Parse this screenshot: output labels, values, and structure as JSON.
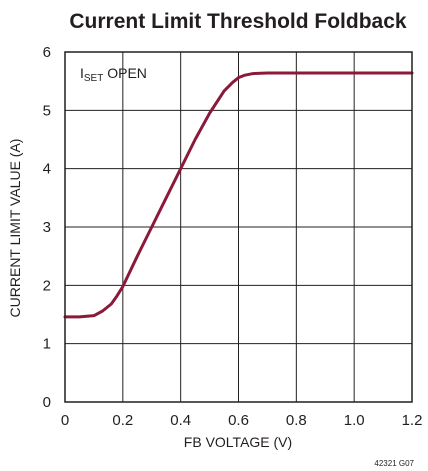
{
  "chart_data": {
    "type": "line",
    "title": "Current Limit Threshold Foldback",
    "xlabel": "FB VOLTAGE (V)",
    "ylabel": "CURRENT LIMIT VALUE (A)",
    "xlim": [
      0,
      1.2
    ],
    "ylim": [
      0,
      6
    ],
    "x_ticks": [
      "0",
      "0.2",
      "0.4",
      "0.6",
      "0.8",
      "1.0",
      "1.2"
    ],
    "y_ticks": [
      "0",
      "1",
      "2",
      "3",
      "4",
      "5",
      "6"
    ],
    "grid": true,
    "annotation": {
      "prefix": "I",
      "subscript": "SET",
      "suffix": " OPEN"
    },
    "figure_code": "42321 G07",
    "series_color": "#8b1a3a",
    "series": [
      {
        "x": [
          0,
          0.05,
          0.1,
          0.13,
          0.16,
          0.18,
          0.2,
          0.25,
          0.3,
          0.35,
          0.4,
          0.45,
          0.5,
          0.55,
          0.58,
          0.6,
          0.62,
          0.65,
          0.7,
          0.8,
          0.9,
          1.0,
          1.1,
          1.2
        ],
        "y": [
          1.46,
          1.46,
          1.48,
          1.56,
          1.68,
          1.82,
          1.98,
          2.5,
          3.0,
          3.5,
          4.0,
          4.5,
          4.95,
          5.33,
          5.48,
          5.56,
          5.6,
          5.63,
          5.64,
          5.64,
          5.64,
          5.64,
          5.64,
          5.64
        ]
      }
    ]
  }
}
